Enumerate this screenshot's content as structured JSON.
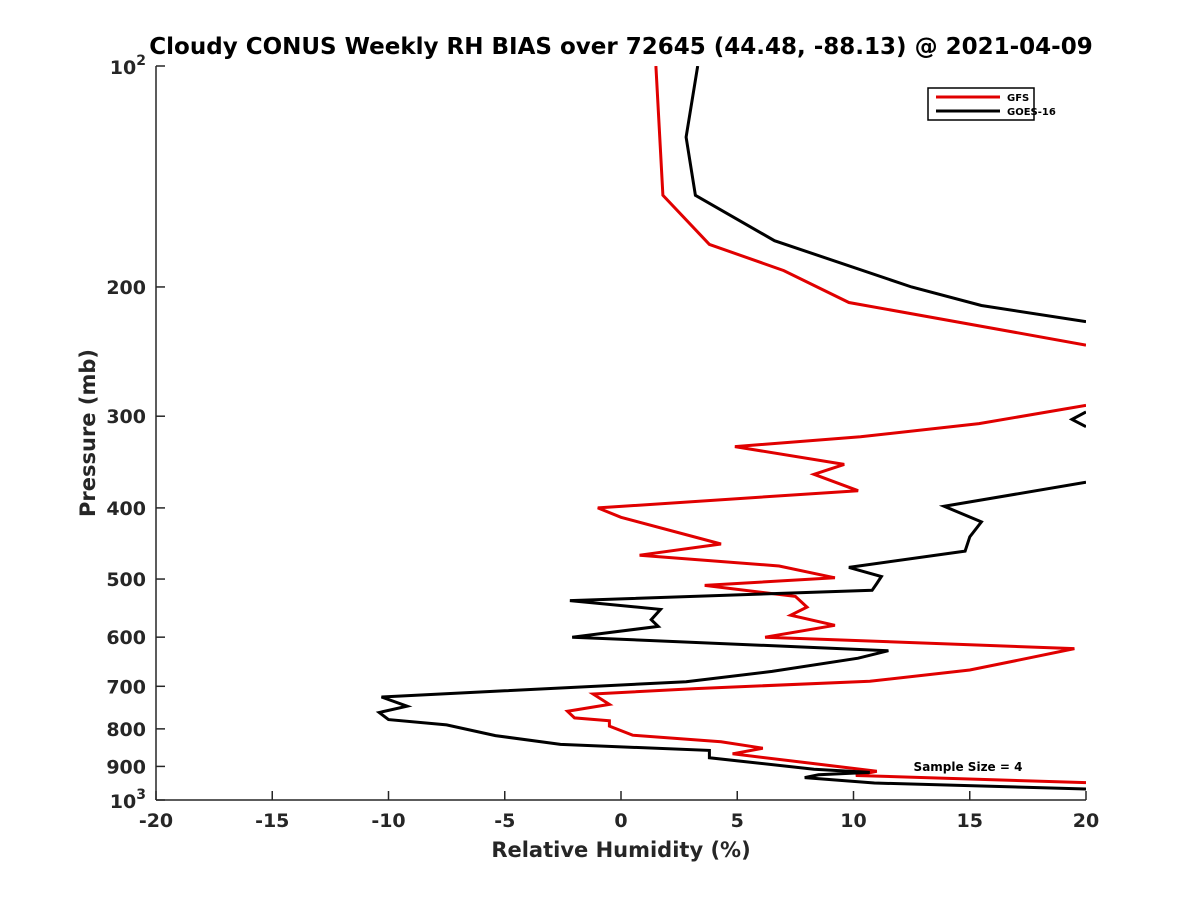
{
  "chart_data": {
    "type": "line",
    "title": "Cloudy CONUS Weekly RH BIAS over 72645 (44.48, -88.13) @ 2021-04-09",
    "xlabel": "Relative Humidity (%)",
    "ylabel": "Pressure (mb)",
    "xlim": [
      -20,
      20
    ],
    "ylim": [
      100,
      1000
    ],
    "y_scale": "log",
    "y_reversed": true,
    "grid": false,
    "legend_position": "top-right",
    "x_ticks": [
      "-20",
      "-15",
      "-10",
      "-5",
      "0",
      "5",
      "10",
      "15",
      "20"
    ],
    "x_tick_values": [
      -20,
      -15,
      -10,
      -5,
      0,
      5,
      10,
      15,
      20
    ],
    "y_ticks": [
      {
        "value": 100,
        "base": "10",
        "exp": "2"
      },
      {
        "value": 200,
        "label": "200"
      },
      {
        "value": 300,
        "label": "300"
      },
      {
        "value": 400,
        "label": "400"
      },
      {
        "value": 500,
        "label": "500"
      },
      {
        "value": 600,
        "label": "600"
      },
      {
        "value": 700,
        "label": "700"
      },
      {
        "value": 800,
        "label": "800"
      },
      {
        "value": 900,
        "label": "900"
      },
      {
        "value": 1000,
        "base": "10",
        "exp": "3"
      }
    ],
    "annotation": "Sample Size = 4",
    "series": [
      {
        "name": "GFS",
        "color": "#e00000",
        "segments": [
          [
            [
              1.5,
              100
            ],
            [
              1.8,
              150
            ],
            [
              3.8,
              175
            ],
            [
              7,
              190
            ],
            [
              9.8,
              210
            ],
            [
              20,
              240
            ]
          ],
          [
            [
              20,
              290
            ],
            [
              15.4,
              307
            ],
            [
              10.3,
              320
            ],
            [
              4.9,
              330
            ],
            [
              9.6,
              349
            ],
            [
              8.3,
              360
            ],
            [
              10.2,
              379
            ],
            [
              -1,
              400
            ],
            [
              0,
              412
            ],
            [
              4.3,
              448
            ],
            [
              0.8,
              464
            ],
            [
              6.8,
              480
            ],
            [
              9.2,
              498
            ],
            [
              3.6,
              510
            ],
            [
              7.5,
              528
            ],
            [
              8,
              546
            ],
            [
              7.3,
              560
            ],
            [
              9.2,
              578
            ],
            [
              6.2,
              600
            ],
            [
              19.5,
              622
            ],
            [
              17.5,
              641
            ],
            [
              15,
              665
            ],
            [
              10.7,
              689
            ],
            [
              3.2,
              705
            ],
            [
              -1.2,
              717
            ],
            [
              -0.5,
              741
            ],
            [
              -2.3,
              757
            ],
            [
              -2,
              773
            ],
            [
              -0.5,
              780
            ],
            [
              -0.5,
              793
            ],
            [
              0.5,
              816
            ],
            [
              4.3,
              833
            ],
            [
              6.1,
              850
            ],
            [
              4.8,
              865
            ],
            [
              8.3,
              892
            ],
            [
              11,
              914
            ],
            [
              10.1,
              926
            ],
            [
              20,
              947
            ]
          ]
        ]
      },
      {
        "name": "GOES-16",
        "color": "#000000",
        "segments": [
          [
            [
              3.3,
              100
            ],
            [
              2.8,
              125
            ],
            [
              3.2,
              150
            ],
            [
              6.6,
              173
            ],
            [
              12.5,
              200
            ],
            [
              15.5,
              212
            ],
            [
              20,
              223
            ]
          ],
          [
            [
              19.4,
              303
            ],
            [
              20,
              310
            ],
            [
              19.4,
              303
            ],
            [
              20,
              296
            ]
          ],
          [
            [
              20,
              369
            ],
            [
              13.9,
              398
            ],
            [
              15.5,
              418
            ],
            [
              15,
              438
            ],
            [
              14.8,
              458
            ],
            [
              9.8,
              482
            ],
            [
              11.2,
              496
            ],
            [
              11,
              507
            ],
            [
              10.8,
              518
            ],
            [
              -2.2,
              535
            ],
            [
              1.7,
              550
            ],
            [
              1.3,
              568
            ],
            [
              1.6,
              580
            ],
            [
              -2.1,
              600
            ],
            [
              11.5,
              626
            ],
            [
              10.2,
              641
            ],
            [
              6.5,
              668
            ],
            [
              2.8,
              690
            ],
            [
              -5,
              710
            ],
            [
              -10.3,
              724
            ],
            [
              -9.2,
              745
            ],
            [
              -10.4,
              760
            ],
            [
              -10,
              777
            ],
            [
              -7.5,
              790
            ],
            [
              -5.4,
              817
            ],
            [
              -2.6,
              840
            ],
            [
              3.8,
              856
            ],
            [
              3.8,
              876
            ],
            [
              8.3,
              908
            ],
            [
              10.7,
              917
            ],
            [
              8.5,
              924
            ],
            [
              7.9,
              932
            ],
            [
              10.9,
              948
            ],
            [
              20,
              966
            ]
          ]
        ]
      }
    ]
  }
}
